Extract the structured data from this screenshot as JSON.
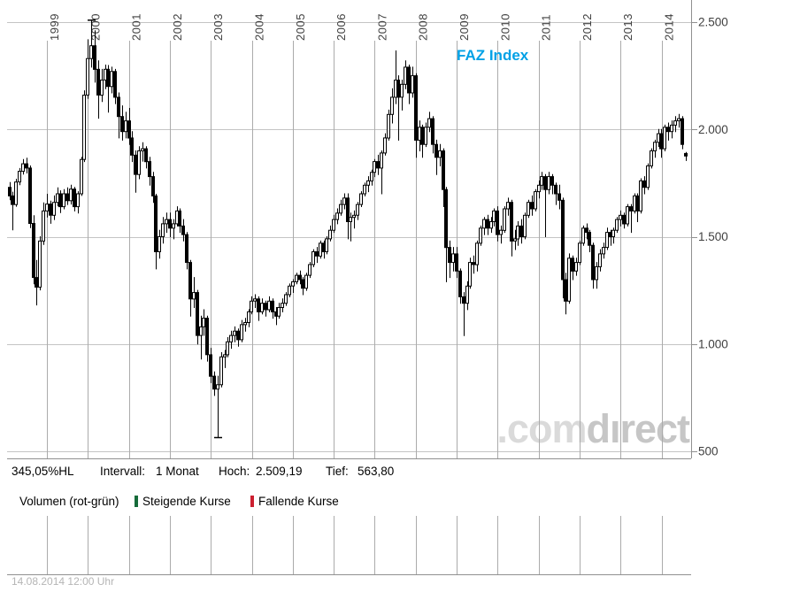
{
  "chart_label": "FAZ Index",
  "watermark": {
    "part1": ".com",
    "part2": "dırect"
  },
  "time_axis": {
    "years": [
      "1999",
      "2000",
      "2001",
      "2002",
      "2003",
      "2004",
      "2005",
      "2006",
      "2007",
      "2008",
      "2009",
      "2010",
      "2011",
      "2012",
      "2013",
      "2014"
    ]
  },
  "price_axis": {
    "labels": [
      "2.500",
      "2.000",
      "1.500",
      "1.000",
      "500"
    ],
    "values": [
      2500,
      2000,
      1500,
      1000,
      500
    ]
  },
  "status_bar": {
    "hl": "345,05%HL",
    "interval_label": "Intervall:",
    "interval_value": "1 Monat",
    "hoch_label": "Hoch:",
    "hoch_value": "2.509,19",
    "tief_label": "Tief:",
    "tief_value": "563,80"
  },
  "legend": {
    "volume_label": "Volumen (rot-grün)",
    "up_label": "Steigende Kurse",
    "down_label": "Fallende Kurse",
    "up_color": "#166b3a",
    "down_color": "#cc2030"
  },
  "footer": {
    "timestamp": "14.08.2014 12:00 Uhr"
  },
  "chart_data": {
    "type": "candlestick",
    "title": "FAZ Index",
    "interval": "1 Monat",
    "start_month": "1998-02",
    "end_month": "2014-08",
    "hl_percent": 345.05,
    "high": 2509.19,
    "low": 563.8,
    "ylim": [
      500,
      2500
    ],
    "ytick_step": 500,
    "grid": true,
    "volume_pane_empty": true,
    "candles_format": [
      "open",
      "high",
      "low",
      "close"
    ],
    "candles": [
      [
        1730,
        1755,
        1670,
        1690
      ],
      [
        1690,
        1710,
        1530,
        1650
      ],
      [
        1650,
        1770,
        1640,
        1755
      ],
      [
        1755,
        1820,
        1740,
        1805
      ],
      [
        1805,
        1862,
        1790,
        1840
      ],
      [
        1840,
        1868,
        1795,
        1820
      ],
      [
        1820,
        1832,
        1540,
        1562
      ],
      [
        1562,
        1600,
        1278,
        1310
      ],
      [
        1310,
        1392,
        1180,
        1265
      ],
      [
        1265,
        1502,
        1250,
        1480
      ],
      [
        1480,
        1660,
        1462,
        1620
      ],
      [
        1620,
        1700,
        1590,
        1652
      ],
      [
        1652,
        1668,
        1560,
        1600
      ],
      [
        1600,
        1692,
        1578,
        1660
      ],
      [
        1660,
        1730,
        1642,
        1700
      ],
      [
        1700,
        1716,
        1610,
        1640
      ],
      [
        1640,
        1722,
        1628,
        1700
      ],
      [
        1700,
        1730,
        1648,
        1668
      ],
      [
        1668,
        1742,
        1650,
        1722
      ],
      [
        1722,
        1732,
        1618,
        1640
      ],
      [
        1640,
        1712,
        1608,
        1700
      ],
      [
        1700,
        1872,
        1690,
        1860
      ],
      [
        1860,
        2182,
        1848,
        2160
      ],
      [
        2160,
        2420,
        2142,
        2330
      ],
      [
        2330,
        2509.19,
        2288,
        2390
      ],
      [
        2390,
        2462,
        2218,
        2280
      ],
      [
        2280,
        2322,
        2050,
        2160
      ],
      [
        2160,
        2282,
        2128,
        2230
      ],
      [
        2230,
        2302,
        2188,
        2280
      ],
      [
        2280,
        2300,
        2078,
        2200
      ],
      [
        2200,
        2292,
        2168,
        2270
      ],
      [
        2270,
        2282,
        2118,
        2150
      ],
      [
        2150,
        2172,
        1958,
        2060
      ],
      [
        2060,
        2112,
        1948,
        1990
      ],
      [
        1990,
        2082,
        1958,
        2040
      ],
      [
        2040,
        2100,
        1928,
        1960
      ],
      [
        1960,
        1992,
        1848,
        1880
      ],
      [
        1880,
        1902,
        1705,
        1790
      ],
      [
        1790,
        1922,
        1768,
        1900
      ],
      [
        1900,
        1940,
        1850,
        1910
      ],
      [
        1910,
        1922,
        1818,
        1850
      ],
      [
        1850,
        1872,
        1738,
        1780
      ],
      [
        1780,
        1802,
        1658,
        1690
      ],
      [
        1690,
        1700,
        1348,
        1430
      ],
      [
        1430,
        1532,
        1398,
        1500
      ],
      [
        1500,
        1592,
        1468,
        1560
      ],
      [
        1560,
        1612,
        1518,
        1580
      ],
      [
        1580,
        1612,
        1498,
        1540
      ],
      [
        1540,
        1582,
        1488,
        1560
      ],
      [
        1560,
        1642,
        1548,
        1620
      ],
      [
        1620,
        1632,
        1518,
        1550
      ],
      [
        1550,
        1582,
        1478,
        1510
      ],
      [
        1510,
        1522,
        1348,
        1380
      ],
      [
        1380,
        1392,
        1128,
        1210
      ],
      [
        1210,
        1312,
        1168,
        1240
      ],
      [
        1240,
        1252,
        998,
        1040
      ],
      [
        1040,
        1132,
        928,
        1080
      ],
      [
        1080,
        1162,
        1038,
        1120
      ],
      [
        1120,
        1132,
        918,
        950
      ],
      [
        950,
        982,
        818,
        850
      ],
      [
        850,
        872,
        758,
        790
      ],
      [
        790,
        852,
        563.8,
        810
      ],
      [
        810,
        962,
        798,
        940
      ],
      [
        940,
        972,
        888,
        950
      ],
      [
        950,
        1032,
        938,
        1010
      ],
      [
        1010,
        1062,
        978,
        1040
      ],
      [
        1040,
        1082,
        1008,
        1060
      ],
      [
        1060,
        1072,
        988,
        1020
      ],
      [
        1020,
        1112,
        1008,
        1090
      ],
      [
        1090,
        1122,
        1058,
        1100
      ],
      [
        1100,
        1162,
        1078,
        1150
      ],
      [
        1150,
        1222,
        1138,
        1200
      ],
      [
        1200,
        1232,
        1168,
        1210
      ],
      [
        1210,
        1222,
        1108,
        1150
      ],
      [
        1150,
        1212,
        1138,
        1190
      ],
      [
        1190,
        1202,
        1128,
        1160
      ],
      [
        1160,
        1222,
        1148,
        1200
      ],
      [
        1200,
        1212,
        1118,
        1150
      ],
      [
        1150,
        1172,
        1088,
        1130
      ],
      [
        1130,
        1192,
        1118,
        1170
      ],
      [
        1170,
        1212,
        1148,
        1190
      ],
      [
        1190,
        1242,
        1178,
        1230
      ],
      [
        1230,
        1282,
        1218,
        1270
      ],
      [
        1270,
        1302,
        1238,
        1290
      ],
      [
        1290,
        1332,
        1278,
        1320
      ],
      [
        1320,
        1342,
        1278,
        1300
      ],
      [
        1300,
        1312,
        1228,
        1260
      ],
      [
        1260,
        1332,
        1248,
        1320
      ],
      [
        1320,
        1382,
        1308,
        1370
      ],
      [
        1370,
        1442,
        1358,
        1430
      ],
      [
        1430,
        1452,
        1378,
        1410
      ],
      [
        1410,
        1482,
        1398,
        1470
      ],
      [
        1470,
        1482,
        1398,
        1430
      ],
      [
        1430,
        1502,
        1418,
        1490
      ],
      [
        1490,
        1552,
        1478,
        1530
      ],
      [
        1530,
        1602,
        1518,
        1580
      ],
      [
        1580,
        1632,
        1558,
        1610
      ],
      [
        1610,
        1672,
        1598,
        1650
      ],
      [
        1650,
        1702,
        1628,
        1680
      ],
      [
        1680,
        1702,
        1488,
        1570
      ],
      [
        1570,
        1612,
        1478,
        1590
      ],
      [
        1590,
        1622,
        1538,
        1600
      ],
      [
        1600,
        1662,
        1578,
        1650
      ],
      [
        1650,
        1712,
        1638,
        1700
      ],
      [
        1700,
        1752,
        1688,
        1740
      ],
      [
        1740,
        1782,
        1708,
        1760
      ],
      [
        1760,
        1812,
        1738,
        1800
      ],
      [
        1800,
        1862,
        1778,
        1850
      ],
      [
        1850,
        1882,
        1788,
        1820
      ],
      [
        1820,
        1902,
        1698,
        1890
      ],
      [
        1890,
        1982,
        1878,
        1960
      ],
      [
        1960,
        2092,
        1948,
        2070
      ],
      [
        2070,
        2192,
        2028,
        2150
      ],
      [
        2150,
        2368,
        2118,
        2230
      ],
      [
        2230,
        2252,
        1948,
        2150
      ],
      [
        2150,
        2232,
        2088,
        2210
      ],
      [
        2210,
        2322,
        2188,
        2290
      ],
      [
        2290,
        2302,
        2118,
        2170
      ],
      [
        2170,
        2292,
        2148,
        2250
      ],
      [
        2250,
        2262,
        1868,
        1950
      ],
      [
        1950,
        2042,
        1898,
        2010
      ],
      [
        2010,
        2022,
        1868,
        1930
      ],
      [
        1930,
        2032,
        1918,
        2010
      ],
      [
        2010,
        2082,
        1988,
        2050
      ],
      [
        2050,
        2062,
        1888,
        1930
      ],
      [
        1930,
        1952,
        1788,
        1870
      ],
      [
        1870,
        1932,
        1828,
        1900
      ],
      [
        1900,
        1912,
        1638,
        1720
      ],
      [
        1720,
        1732,
        1288,
        1450
      ],
      [
        1450,
        1482,
        1308,
        1380
      ],
      [
        1380,
        1452,
        1338,
        1420
      ],
      [
        1420,
        1452,
        1308,
        1340
      ],
      [
        1340,
        1352,
        1188,
        1220
      ],
      [
        1220,
        1242,
        1037,
        1190
      ],
      [
        1190,
        1292,
        1158,
        1270
      ],
      [
        1270,
        1402,
        1258,
        1380
      ],
      [
        1380,
        1412,
        1328,
        1370
      ],
      [
        1370,
        1482,
        1338,
        1470
      ],
      [
        1470,
        1552,
        1458,
        1540
      ],
      [
        1540,
        1592,
        1508,
        1580
      ],
      [
        1580,
        1602,
        1508,
        1540
      ],
      [
        1540,
        1592,
        1518,
        1570
      ],
      [
        1570,
        1632,
        1548,
        1620
      ],
      [
        1620,
        1642,
        1478,
        1510
      ],
      [
        1510,
        1552,
        1468,
        1530
      ],
      [
        1530,
        1642,
        1518,
        1630
      ],
      [
        1630,
        1682,
        1598,
        1660
      ],
      [
        1660,
        1672,
        1408,
        1480
      ],
      [
        1480,
        1532,
        1438,
        1490
      ],
      [
        1490,
        1572,
        1458,
        1550
      ],
      [
        1550,
        1582,
        1468,
        1500
      ],
      [
        1500,
        1612,
        1488,
        1600
      ],
      [
        1600,
        1672,
        1588,
        1660
      ],
      [
        1660,
        1692,
        1598,
        1630
      ],
      [
        1630,
        1722,
        1618,
        1710
      ],
      [
        1710,
        1762,
        1678,
        1740
      ],
      [
        1740,
        1802,
        1718,
        1780
      ],
      [
        1780,
        1792,
        1498,
        1720
      ],
      [
        1720,
        1802,
        1698,
        1780
      ],
      [
        1780,
        1792,
        1698,
        1740
      ],
      [
        1740,
        1752,
        1648,
        1700
      ],
      [
        1700,
        1742,
        1628,
        1670
      ],
      [
        1670,
        1682,
        1213,
        1300
      ],
      [
        1300,
        1332,
        1138,
        1200
      ],
      [
        1200,
        1422,
        1188,
        1400
      ],
      [
        1400,
        1412,
        1298,
        1340
      ],
      [
        1340,
        1402,
        1318,
        1380
      ],
      [
        1380,
        1482,
        1368,
        1470
      ],
      [
        1470,
        1552,
        1458,
        1540
      ],
      [
        1540,
        1562,
        1488,
        1520
      ],
      [
        1520,
        1532,
        1428,
        1460
      ],
      [
        1460,
        1472,
        1258,
        1300
      ],
      [
        1300,
        1382,
        1258,
        1360
      ],
      [
        1360,
        1442,
        1338,
        1420
      ],
      [
        1420,
        1472,
        1398,
        1450
      ],
      [
        1450,
        1542,
        1438,
        1520
      ],
      [
        1520,
        1532,
        1458,
        1500
      ],
      [
        1500,
        1542,
        1468,
        1530
      ],
      [
        1530,
        1592,
        1518,
        1580
      ],
      [
        1580,
        1622,
        1548,
        1600
      ],
      [
        1600,
        1612,
        1538,
        1560
      ],
      [
        1560,
        1652,
        1548,
        1640
      ],
      [
        1640,
        1652,
        1518,
        1620
      ],
      [
        1620,
        1702,
        1608,
        1690
      ],
      [
        1690,
        1702,
        1568,
        1620
      ],
      [
        1620,
        1772,
        1608,
        1760
      ],
      [
        1760,
        1782,
        1698,
        1730
      ],
      [
        1730,
        1842,
        1718,
        1830
      ],
      [
        1830,
        1912,
        1818,
        1900
      ],
      [
        1900,
        1952,
        1868,
        1940
      ],
      [
        1940,
        2002,
        1918,
        1980
      ],
      [
        1980,
        2002,
        1868,
        1910
      ],
      [
        1910,
        2022,
        1898,
        2010
      ],
      [
        2010,
        2032,
        1948,
        1990
      ],
      [
        1990,
        2042,
        1958,
        2020
      ],
      [
        2020,
        2062,
        1988,
        2040
      ],
      [
        2040,
        2072,
        2008,
        2050
      ],
      [
        2050,
        2062,
        1908,
        1930
      ],
      [
        1888,
        1895,
        1853,
        1876
      ]
    ],
    "markers": [
      {
        "candle_index": 24,
        "value": 2509.19,
        "kind": "hoch"
      },
      {
        "candle_index": 61,
        "value": 563.8,
        "kind": "tief"
      }
    ]
  }
}
